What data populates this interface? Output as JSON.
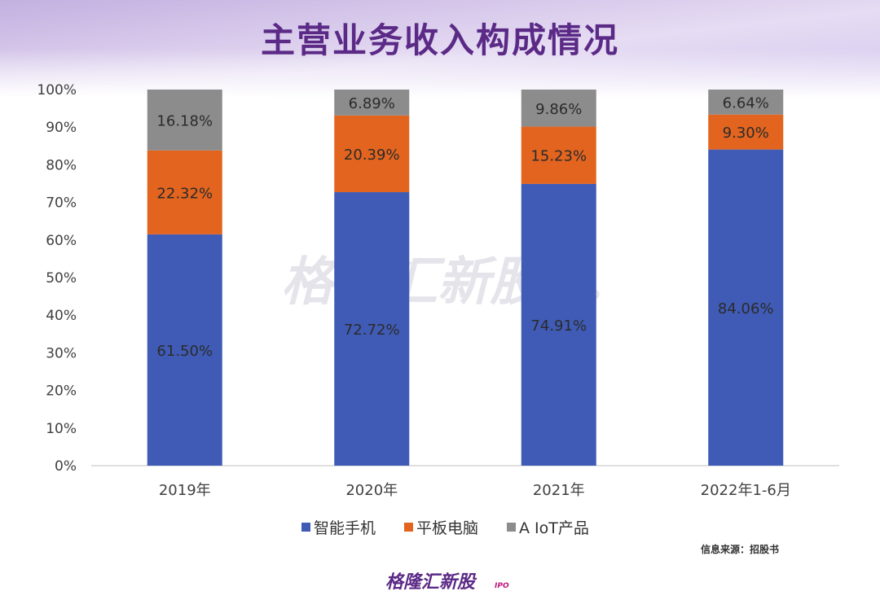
{
  "title": "主营业务收入构成情况",
  "source_note": "信息来源：招股书",
  "watermark": {
    "text": "格隆汇新股",
    "suffix": "IPO"
  },
  "brand": {
    "text": "格隆汇新股",
    "suffix": "IPO"
  },
  "colors": {
    "series": [
      "#3f5bb5",
      "#e2641f",
      "#8c8c8c"
    ],
    "title": "#5b2a86",
    "banner_top": "#c9b7e3",
    "banner_bottom": "#f1ecf8"
  },
  "chart_data": {
    "type": "bar",
    "stacked": true,
    "categories": [
      "2019年",
      "2020年",
      "2021年",
      "2022年1-6月"
    ],
    "series": [
      {
        "name": "智能手机",
        "values": [
          61.5,
          72.72,
          74.91,
          84.06
        ],
        "labels": [
          "61.50%",
          "72.72%",
          "74.91%",
          "84.06%"
        ]
      },
      {
        "name": "平板电脑",
        "values": [
          22.32,
          20.39,
          15.23,
          9.3
        ],
        "labels": [
          "22.32%",
          "20.39%",
          "15.23%",
          "9.30%"
        ]
      },
      {
        "name": "A IoT产品",
        "values": [
          16.18,
          6.89,
          9.86,
          6.64
        ],
        "labels": [
          "16.18%",
          "6.89%",
          "9.86%",
          "6.64%"
        ]
      }
    ],
    "ylim": [
      0,
      100
    ],
    "yticks": [
      "0%",
      "10%",
      "20%",
      "30%",
      "40%",
      "50%",
      "60%",
      "70%",
      "80%",
      "90%",
      "100%"
    ],
    "legend": "bottom",
    "grid": false
  }
}
